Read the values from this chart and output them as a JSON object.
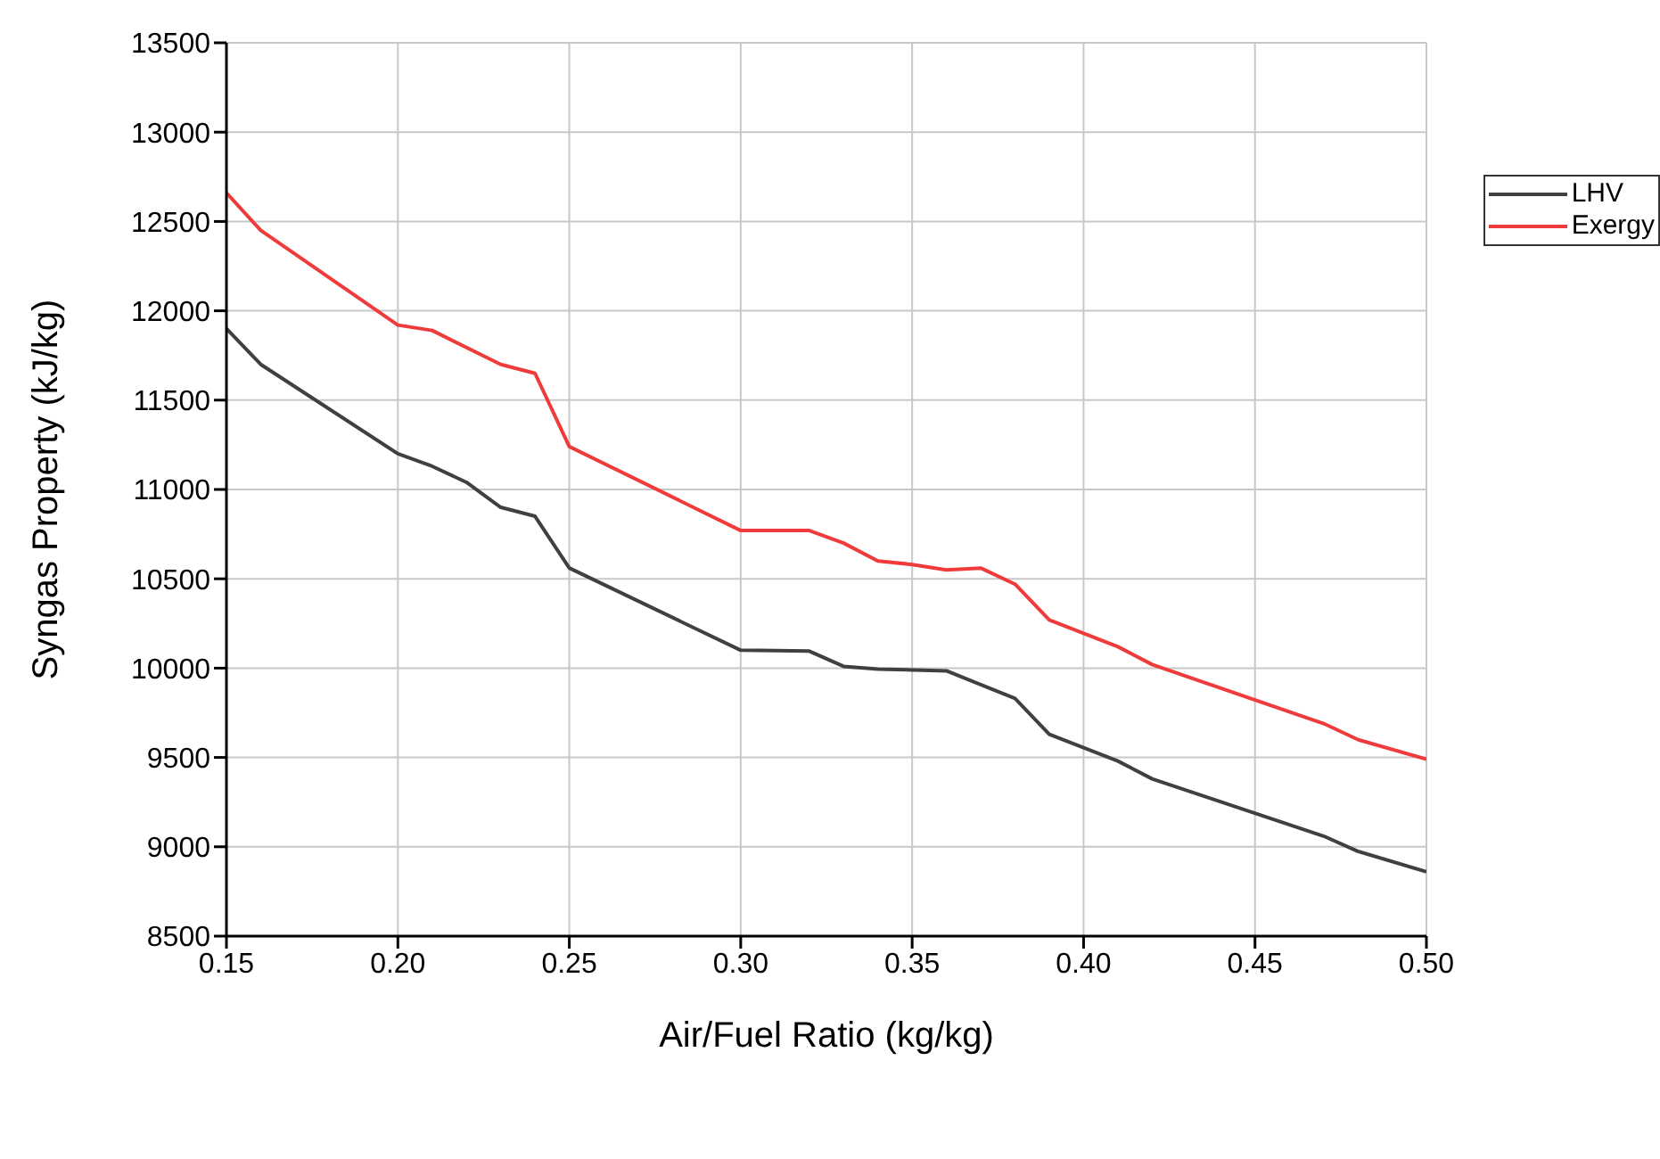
{
  "chart_data": {
    "type": "line",
    "xlabel": "Air/Fuel Ratio (kg/kg)",
    "ylabel": "Syngas Property (kJ/kg)",
    "xlim": [
      0.15,
      0.5
    ],
    "xticks": [
      {
        "value": 0.15,
        "label": "0.15"
      },
      {
        "value": 0.2,
        "label": "0.20"
      },
      {
        "value": 0.25,
        "label": "0.25"
      },
      {
        "value": 0.3,
        "label": "0.30"
      },
      {
        "value": 0.35,
        "label": "0.35"
      },
      {
        "value": 0.4,
        "label": "0.40"
      },
      {
        "value": 0.45,
        "label": "0.45"
      },
      {
        "value": 0.5,
        "label": "0.50"
      }
    ],
    "ylim": [
      8500,
      13500
    ],
    "yticks": [
      8500,
      9000,
      9500,
      10000,
      10500,
      11000,
      11500,
      12000,
      12500,
      13000,
      13500
    ],
    "grid": true,
    "legend": "top right",
    "marker": "none",
    "line_style": "solid",
    "series": [
      {
        "name": "LHV",
        "color": "#404040",
        "x": [
          0.15,
          0.16,
          0.2,
          0.21,
          0.22,
          0.23,
          0.24,
          0.25,
          0.3,
          0.32,
          0.33,
          0.34,
          0.36,
          0.38,
          0.39,
          0.41,
          0.42,
          0.47,
          0.48,
          0.5
        ],
        "values": [
          11900,
          11700,
          11200,
          11130,
          11040,
          10900,
          10850,
          10560,
          10100,
          10095,
          10010,
          9995,
          9985,
          9830,
          9630,
          9480,
          9380,
          9060,
          8975,
          8860
        ]
      },
      {
        "name": "Exergy",
        "color": "#ef3b3b",
        "x": [
          0.15,
          0.16,
          0.2,
          0.21,
          0.23,
          0.24,
          0.25,
          0.3,
          0.32,
          0.33,
          0.34,
          0.35,
          0.36,
          0.37,
          0.38,
          0.39,
          0.41,
          0.42,
          0.47,
          0.48,
          0.5
        ],
        "values": [
          12660,
          12450,
          11920,
          11890,
          11700,
          11650,
          11240,
          10770,
          10770,
          10700,
          10600,
          10580,
          10550,
          10560,
          10470,
          10270,
          10120,
          10020,
          9690,
          9600,
          9490
        ]
      }
    ]
  }
}
